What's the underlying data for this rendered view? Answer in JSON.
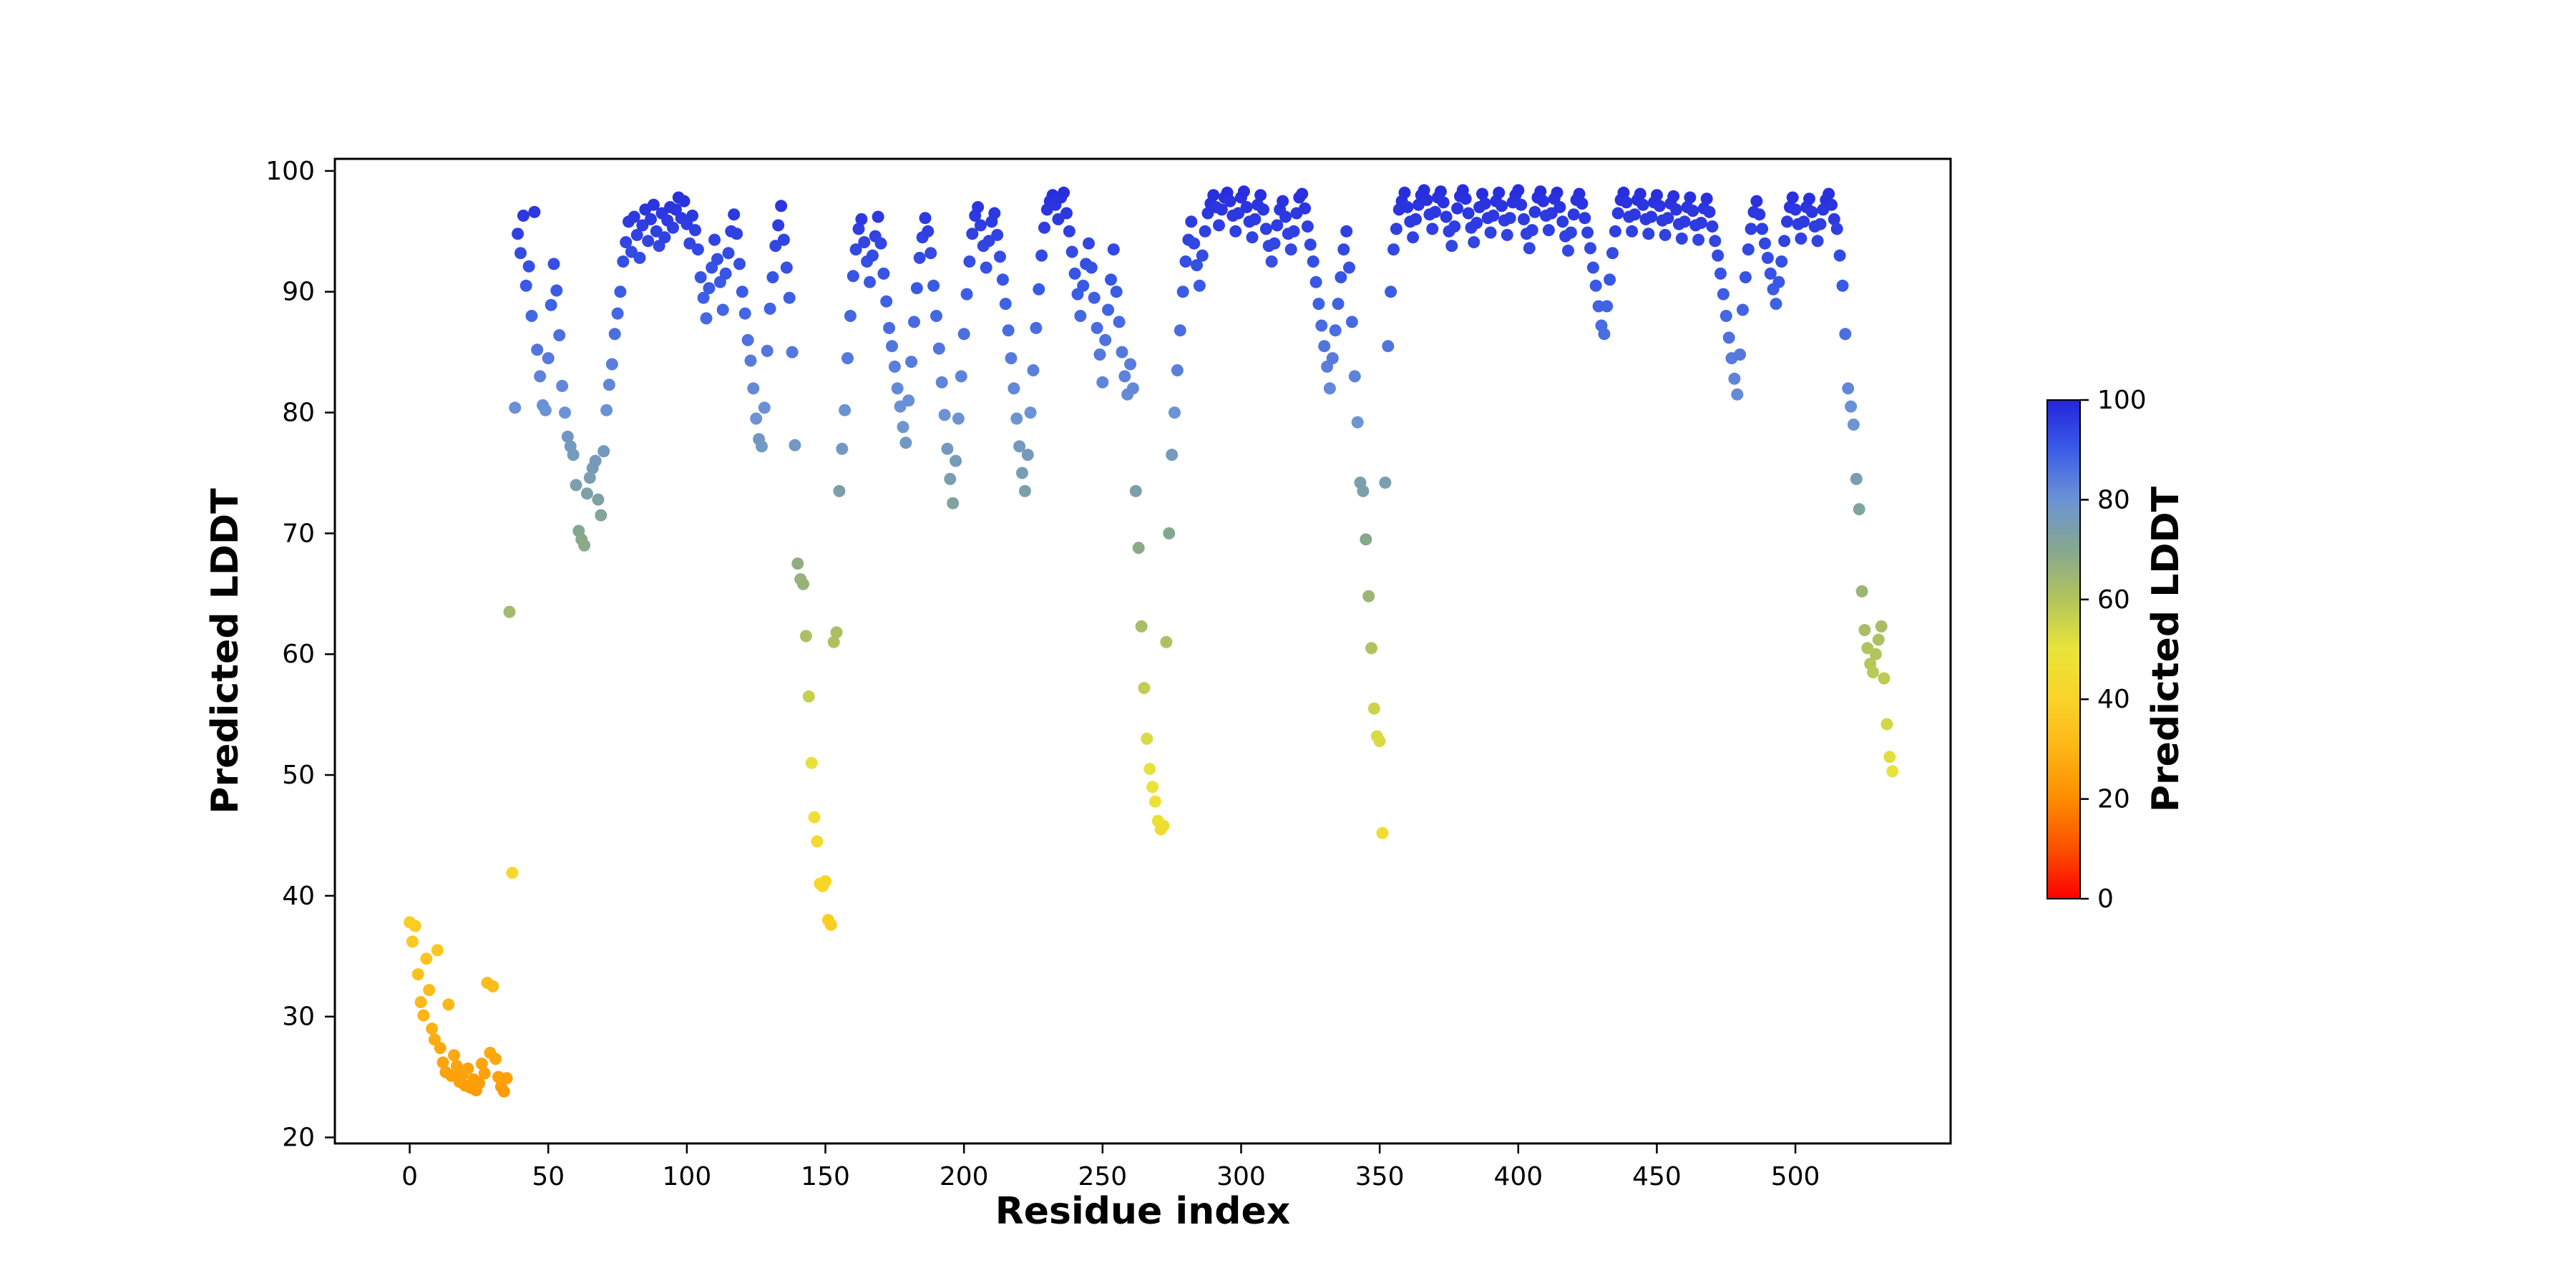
{
  "figure": {
    "background": "#ffffff"
  },
  "chart_data": {
    "type": "scatter",
    "xlabel": "Residue index",
    "ylabel": "Predicted LDDT",
    "colorbar_label": "Predicted LDDT",
    "xlim": [
      -27,
      556
    ],
    "ylim": [
      19.5,
      101
    ],
    "x_ticks": [
      0,
      50,
      100,
      150,
      200,
      250,
      300,
      350,
      400,
      450,
      500
    ],
    "y_ticks": [
      20,
      30,
      40,
      50,
      60,
      70,
      80,
      90,
      100
    ],
    "colorbar_ticks": [
      0,
      20,
      40,
      60,
      80,
      100
    ],
    "colorbar_range": [
      0,
      100
    ],
    "grid": false,
    "legend": "none (colorbar encodes value)",
    "colormap_stops": [
      [
        0,
        "#fb0000"
      ],
      [
        10,
        "#fb5000"
      ],
      [
        20,
        "#fd8c00"
      ],
      [
        30,
        "#fdb515"
      ],
      [
        40,
        "#fad428"
      ],
      [
        50,
        "#e9e43a"
      ],
      [
        60,
        "#b2c45c"
      ],
      [
        70,
        "#86a78f"
      ],
      [
        80,
        "#6c93d5"
      ],
      [
        90,
        "#3a5ce6"
      ],
      [
        100,
        "#2424dc"
      ]
    ],
    "series": [
      {
        "name": "per-residue predicted LDDT",
        "x_description": "residue index, consecutive integers",
        "x_start": 0,
        "x_step": 1,
        "y": [
          37.8,
          36.2,
          37.5,
          33.5,
          31.2,
          30.1,
          34.8,
          32.2,
          29.0,
          28.1,
          35.5,
          27.4,
          26.2,
          25.4,
          31.0,
          25.1,
          26.8,
          25.9,
          24.6,
          25.2,
          24.3,
          25.7,
          24.1,
          24.8,
          23.9,
          24.5,
          26.1,
          25.3,
          32.8,
          27.0,
          32.5,
          26.5,
          25.0,
          24.2,
          23.8,
          24.9,
          63.5,
          41.9,
          80.4,
          94.8,
          93.2,
          96.3,
          90.5,
          92.1,
          88.0,
          96.6,
          85.2,
          83.0,
          80.6,
          80.2,
          84.5,
          88.9,
          92.3,
          90.1,
          86.4,
          82.2,
          80.0,
          78.0,
          77.2,
          76.5,
          74.0,
          70.2,
          69.5,
          69.0,
          73.3,
          74.6,
          75.4,
          76.0,
          72.8,
          71.5,
          76.8,
          80.2,
          82.3,
          84.0,
          86.5,
          88.2,
          90.0,
          92.5,
          94.1,
          95.8,
          93.3,
          96.2,
          94.7,
          92.8,
          95.5,
          96.8,
          94.2,
          96.0,
          97.2,
          95.0,
          93.8,
          96.5,
          94.5,
          95.9,
          97.0,
          95.3,
          96.8,
          97.8,
          96.1,
          97.5,
          95.6,
          94.0,
          96.3,
          95.1,
          93.5,
          91.2,
          89.5,
          87.8,
          90.3,
          92.0,
          94.3,
          92.7,
          90.8,
          88.5,
          91.5,
          93.2,
          95.0,
          96.4,
          94.8,
          92.3,
          90.0,
          88.2,
          86.0,
          84.3,
          82.0,
          79.5,
          77.8,
          77.2,
          80.4,
          85.1,
          88.6,
          91.2,
          93.8,
          95.5,
          97.1,
          94.3,
          92.0,
          89.5,
          85.0,
          77.3,
          67.5,
          66.2,
          65.8,
          61.5,
          56.5,
          51.0,
          46.5,
          44.5,
          41.0,
          40.8,
          41.2,
          38.0,
          37.6,
          61.0,
          61.8,
          73.5,
          77.0,
          80.2,
          84.5,
          88.0,
          91.3,
          93.5,
          95.2,
          96.0,
          94.1,
          92.5,
          90.8,
          93.0,
          94.6,
          96.2,
          94.0,
          91.5,
          89.2,
          87.0,
          85.5,
          83.8,
          82.0,
          80.5,
          78.8,
          77.5,
          81.0,
          84.2,
          87.5,
          90.3,
          92.8,
          94.5,
          96.1,
          95.0,
          93.2,
          90.5,
          88.0,
          85.3,
          82.5,
          79.8,
          77.0,
          74.5,
          72.5,
          76.0,
          79.5,
          83.0,
          86.5,
          89.8,
          92.5,
          94.8,
          96.3,
          97.0,
          95.5,
          93.8,
          92.0,
          94.2,
          95.8,
          96.5,
          94.7,
          92.9,
          91.0,
          89.0,
          86.8,
          84.5,
          82.0,
          79.5,
          77.2,
          75.0,
          73.5,
          76.5,
          80.0,
          83.5,
          87.0,
          90.2,
          93.0,
          95.3,
          96.8,
          97.5,
          98.0,
          97.2,
          96.0,
          97.8,
          98.2,
          96.5,
          95.0,
          93.3,
          91.5,
          89.8,
          88.0,
          90.5,
          92.3,
          94.0,
          92.0,
          89.5,
          87.0,
          84.8,
          82.5,
          86.0,
          88.5,
          91.0,
          93.5,
          90.0,
          87.5,
          85.0,
          83.0,
          81.5,
          84.0,
          82.0,
          73.5,
          68.8,
          62.3,
          57.2,
          53.0,
          50.5,
          49.0,
          47.8,
          46.2,
          45.5,
          45.8,
          61.0,
          70.0,
          76.5,
          80.0,
          83.5,
          86.8,
          90.0,
          92.5,
          94.3,
          95.8,
          94.0,
          92.2,
          90.5,
          93.0,
          95.0,
          96.5,
          97.3,
          98.0,
          97.0,
          95.5,
          96.8,
          97.8,
          98.2,
          97.5,
          96.3,
          95.0,
          96.5,
          97.8,
          98.3,
          97.0,
          95.8,
          94.5,
          96.0,
          97.2,
          98.0,
          96.8,
          95.2,
          93.8,
          92.5,
          94.0,
          95.5,
          96.8,
          97.5,
          96.2,
          94.8,
          93.5,
          95.0,
          96.5,
          97.8,
          98.1,
          96.9,
          95.4,
          93.9,
          92.5,
          90.8,
          89.0,
          87.2,
          85.5,
          83.8,
          82.0,
          84.5,
          86.8,
          89.0,
          91.2,
          93.5,
          95.0,
          92.0,
          87.5,
          83.0,
          79.2,
          74.2,
          73.5,
          69.5,
          64.8,
          60.5,
          55.5,
          53.2,
          52.8,
          45.2,
          74.2,
          85.5,
          90.0,
          93.5,
          95.2,
          96.8,
          97.5,
          98.2,
          97.0,
          95.8,
          94.5,
          96.0,
          97.2,
          98.0,
          98.4,
          97.6,
          96.4,
          95.2,
          96.6,
          97.8,
          98.3,
          97.4,
          96.2,
          95.0,
          93.8,
          95.4,
          96.9,
          97.9,
          98.4,
          97.7,
          96.5,
          95.3,
          94.1,
          95.7,
          97.0,
          98.1,
          97.3,
          96.1,
          94.9,
          96.3,
          97.5,
          98.2,
          97.1,
          95.9,
          94.7,
          96.1,
          97.4,
          98.0,
          98.4,
          97.2,
          96.0,
          94.8,
          93.6,
          95.1,
          96.6,
          97.8,
          98.3,
          97.5,
          96.3,
          95.1,
          96.5,
          97.7,
          98.2,
          97.0,
          95.8,
          94.6,
          93.4,
          94.9,
          96.4,
          97.6,
          98.1,
          97.3,
          96.1,
          94.9,
          93.6,
          92.0,
          90.5,
          88.8,
          87.2,
          86.5,
          88.8,
          91.0,
          93.2,
          95.0,
          96.5,
          97.6,
          98.2,
          97.4,
          96.2,
          95.0,
          96.4,
          97.6,
          98.1,
          97.2,
          96.0,
          94.8,
          96.2,
          97.4,
          98.0,
          97.1,
          95.9,
          94.7,
          96.1,
          97.3,
          97.9,
          96.8,
          95.6,
          94.4,
          95.8,
          97.0,
          97.8,
          96.7,
          95.5,
          94.3,
          95.7,
          96.9,
          97.7,
          96.6,
          95.4,
          94.2,
          93.0,
          91.5,
          89.8,
          88.0,
          86.2,
          84.5,
          82.8,
          81.5,
          84.8,
          88.5,
          91.2,
          93.5,
          95.2,
          96.6,
          97.5,
          96.4,
          95.2,
          94.0,
          92.8,
          91.5,
          90.2,
          89.0,
          90.8,
          92.5,
          94.2,
          95.8,
          97.0,
          97.8,
          96.8,
          95.6,
          94.4,
          95.8,
          97.0,
          97.7,
          96.6,
          95.4,
          94.2,
          95.6,
          96.8,
          97.6,
          98.1,
          97.2,
          96.0,
          95.2,
          93.0,
          90.5,
          86.5,
          82.0,
          80.5,
          79.0,
          74.5,
          72.0,
          65.2,
          62.0,
          60.5,
          59.2,
          58.5,
          60.0,
          61.2,
          62.3,
          58.0,
          54.2,
          51.5,
          50.3
        ]
      }
    ]
  }
}
